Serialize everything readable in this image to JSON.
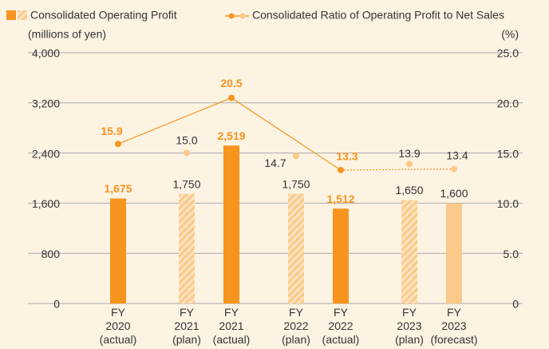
{
  "chart_data": {
    "type": "bar",
    "y_axis_label": "(millions of yen)",
    "y2_axis_label": "(%)",
    "categories": [
      "FY 2020 (actual)",
      "FY 2021 (plan)",
      "FY 2021 (actual)",
      "FY 2022 (plan)",
      "FY 2022 (actual)",
      "FY 2023 (plan)",
      "FY 2023 (forecast)"
    ],
    "ylim": [
      0,
      4000
    ],
    "yticks": [
      0,
      {
        "value": 800,
        "label": "800"
      },
      {
        "value": 1600,
        "label": "1,600"
      },
      {
        "value": 2400,
        "label": "2,400"
      },
      {
        "value": 3200,
        "label": "3,200"
      },
      {
        "value": 4000,
        "label": "4,000"
      }
    ],
    "y2lim": [
      0,
      25
    ],
    "y2ticks": [
      0,
      {
        "value": 5,
        "label": "5.0"
      },
      {
        "value": 10,
        "label": "10.0"
      },
      {
        "value": 15,
        "label": "15.0"
      },
      {
        "value": 20,
        "label": "20.0"
      },
      {
        "value": 25,
        "label": "25.0"
      }
    ],
    "grid": true,
    "series": [
      {
        "name": "Consolidated Operating Profit",
        "type": "bar",
        "color": "#f7941d",
        "colors": [
          "#f7941d",
          "#fbc98a",
          "#f7941d",
          "#fbc98a",
          "#f7941d",
          "#fbc98a",
          "#fbc98a"
        ],
        "hatch": [
          false,
          true,
          false,
          true,
          false,
          true,
          false
        ],
        "values": [
          1675,
          1750,
          2519,
          1750,
          1512,
          1650,
          1600
        ],
        "value_labels": [
          "1,675",
          "1,750",
          "2,519",
          "1,750",
          "1,512",
          "1,650",
          "1,600"
        ]
      },
      {
        "name": "Consolidated Ratio of Operating Profit to Net Sales",
        "type": "line",
        "axis": "y2",
        "color": "#f7941d",
        "point_colors": [
          "#f7941d",
          "#fbc98a",
          "#f7941d",
          "#fbc98a",
          "#f7941d",
          "#fbc98a",
          "#fbc98a"
        ],
        "values": [
          15.9,
          15,
          20.5,
          14.7,
          13.3,
          13.9,
          13.4
        ],
        "value_labels": [
          "15.9",
          "15.0",
          "20.5",
          "14.7",
          "13.3",
          "13.9",
          "13.4"
        ]
      }
    ]
  }
}
